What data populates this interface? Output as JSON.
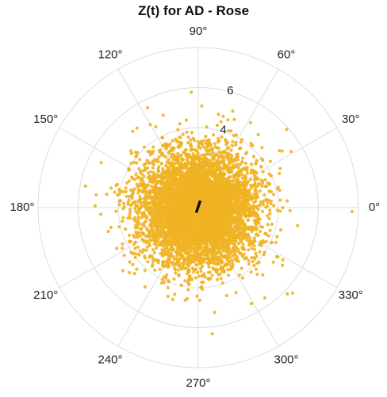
{
  "chart_data": {
    "type": "scatter",
    "projection": "polar",
    "title": "Z(t) for AD - Rose",
    "theta_ticks": [
      0,
      30,
      60,
      90,
      120,
      150,
      180,
      210,
      240,
      270,
      300,
      330
    ],
    "theta_tick_labels": [
      "0°",
      "30°",
      "60°",
      "90°",
      "120°",
      "150°",
      "180°",
      "210°",
      "240°",
      "270°",
      "300°",
      "330°"
    ],
    "r_ticks": [
      2,
      4,
      6,
      8
    ],
    "r_tick_labels": [
      "",
      "4",
      "6",
      ""
    ],
    "r_max": 8,
    "grid": true,
    "series": [
      {
        "color": "#F0B323",
        "point_count": 6000,
        "distribution": "isotropic-gaussian",
        "center": [
          0,
          0
        ],
        "sigma": 1.45
      }
    ],
    "annotation": {
      "type": "segment",
      "color": "#111111",
      "from": [
        -0.1,
        -0.25
      ],
      "to": [
        0.1,
        0.35
      ]
    }
  }
}
